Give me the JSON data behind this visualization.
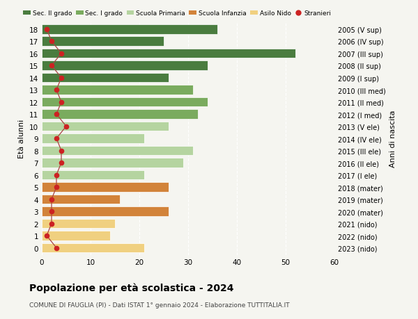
{
  "ages": [
    18,
    17,
    16,
    15,
    14,
    13,
    12,
    11,
    10,
    9,
    8,
    7,
    6,
    5,
    4,
    3,
    2,
    1,
    0
  ],
  "years": [
    "2005 (V sup)",
    "2006 (IV sup)",
    "2007 (III sup)",
    "2008 (II sup)",
    "2009 (I sup)",
    "2010 (III med)",
    "2011 (II med)",
    "2012 (I med)",
    "2013 (V ele)",
    "2014 (IV ele)",
    "2015 (III ele)",
    "2016 (II ele)",
    "2017 (I ele)",
    "2018 (mater)",
    "2019 (mater)",
    "2020 (mater)",
    "2021 (nido)",
    "2022 (nido)",
    "2023 (nido)"
  ],
  "values": [
    36,
    25,
    52,
    34,
    26,
    31,
    34,
    32,
    26,
    21,
    31,
    29,
    21,
    26,
    16,
    26,
    15,
    14,
    21
  ],
  "stranieri": [
    1,
    2,
    4,
    2,
    4,
    3,
    4,
    3,
    5,
    3,
    4,
    4,
    3,
    3,
    2,
    2,
    2,
    1,
    3
  ],
  "color_per_age": [
    "#4a7c3f",
    "#4a7c3f",
    "#4a7c3f",
    "#4a7c3f",
    "#4a7c3f",
    "#7aab5e",
    "#7aab5e",
    "#7aab5e",
    "#b5d4a0",
    "#b5d4a0",
    "#b5d4a0",
    "#b5d4a0",
    "#b5d4a0",
    "#d2833a",
    "#d2833a",
    "#d2833a",
    "#f0d080",
    "#f0d080",
    "#f0d080"
  ],
  "stranieri_color": "#cc2222",
  "stranieri_line_color": "#aa4444",
  "title": "Popolazione per età scolastica - 2024",
  "subtitle": "COMUNE DI FAUGLIA (PI) - Dati ISTAT 1° gennaio 2024 - Elaborazione TUTTITALIA.IT",
  "ylabel_left": "Età alunni",
  "ylabel_right": "Anni di nascita",
  "xlim": [
    0,
    60
  ],
  "xticks": [
    0,
    10,
    20,
    30,
    40,
    50,
    60
  ],
  "legend_labels": [
    "Sec. II grado",
    "Sec. I grado",
    "Scuola Primaria",
    "Scuola Infanzia",
    "Asilo Nido",
    "Stranieri"
  ],
  "legend_colors": [
    "#4a7c3f",
    "#7aab5e",
    "#b5d4a0",
    "#d2833a",
    "#f0d080",
    "#cc2222"
  ],
  "bg_color": "#f5f5f0",
  "bar_height": 0.78
}
